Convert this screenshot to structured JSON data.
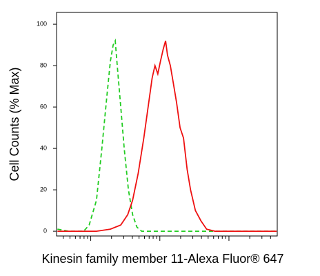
{
  "chart_data": {
    "type": "line",
    "x_label": "Kinesin family member 11-Alexa Fluor® 647",
    "y_label": "Cell Counts (% Max)",
    "log_x": true,
    "xlim": [
      3.2,
      5000
    ],
    "xticks": [
      10,
      100,
      1000
    ],
    "ylim": [
      -2.3,
      105.7
    ],
    "yticks": [
      0,
      20,
      40,
      60,
      80,
      100
    ],
    "series": [
      {
        "color": "#22cc22",
        "dashed": true,
        "x": [
          3.3,
          4.8,
          7.9,
          9.5,
          12.1,
          14.5,
          17.1,
          19.2,
          21.1,
          22.6,
          24.2,
          27.2,
          30.5,
          35.1,
          40.4,
          46.5,
          54.6,
          498,
          4900
        ],
        "values": [
          1,
          0,
          0,
          3,
          15,
          40,
          65,
          82,
          90,
          92,
          80,
          60,
          40,
          20,
          8,
          2,
          0,
          0,
          0
        ]
      },
      {
        "color": "#ee1111",
        "dashed": false,
        "x": [
          3.3,
          12.1,
          19.2,
          27.2,
          34.3,
          40.4,
          48.6,
          58.6,
          68.9,
          77.4,
          84.9,
          93.3,
          102,
          112,
          121,
          129,
          142,
          156,
          175,
          196,
          220,
          248,
          278,
          327,
          394,
          475,
          628,
          4900
        ],
        "values": [
          0,
          0,
          1,
          3,
          8,
          15,
          28,
          45,
          62,
          74,
          80,
          76,
          82,
          88,
          92,
          85,
          80,
          72,
          62,
          50,
          45,
          30,
          20,
          10,
          5,
          1,
          0,
          0
        ]
      }
    ]
  }
}
